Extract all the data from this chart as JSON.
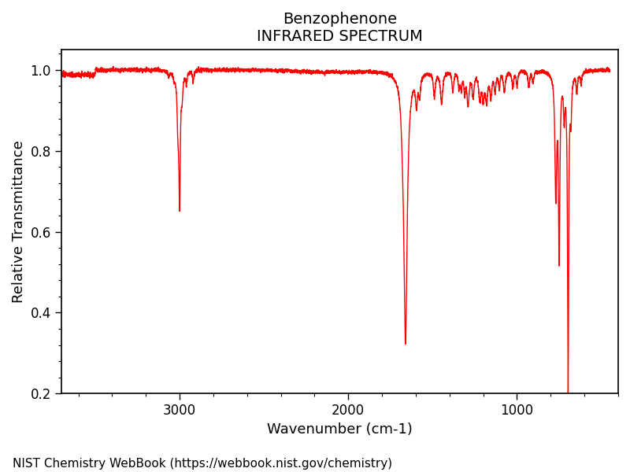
{
  "title_line1": "Benzophenone",
  "title_line2": "INFRARED SPECTRUM",
  "xlabel": "Wavenumber (cm-1)",
  "ylabel": "Relative Transmittance",
  "xlim": [
    3700,
    400
  ],
  "ylim": [
    0.2,
    1.05
  ],
  "yticks": [
    0.2,
    0.4,
    0.6,
    0.8,
    1.0
  ],
  "xticks": [
    3000,
    2000,
    1000
  ],
  "line_color": "#FF0000",
  "line_width": 1.0,
  "background_color": "#FFFFFF",
  "footer_text": "NIST Chemistry WebBook (https://webbook.nist.gov/chemistry)",
  "title_fontsize": 14,
  "label_fontsize": 13,
  "tick_fontsize": 12,
  "footer_fontsize": 11
}
